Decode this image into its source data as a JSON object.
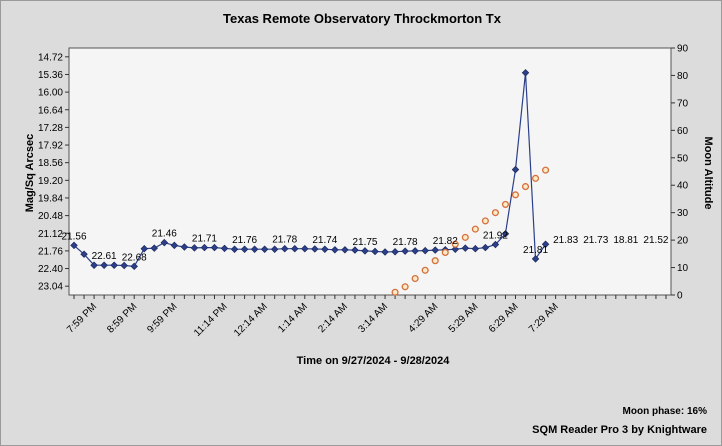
{
  "chart_data": {
    "type": "line",
    "title": "Texas Remote Observatory   Throckmorton Tx",
    "xlabel": "Time on 9/27/2024 - 9/28/2024",
    "ylabel": "Mag/Sq Arcsec",
    "y2label": "Moon Altitude",
    "y_ticks": [
      "14.72",
      "15.36",
      "16.00",
      "16.64",
      "17.28",
      "17.92",
      "18.56",
      "19.20",
      "19.84",
      "20.48",
      "21.12",
      "21.76",
      "22.40",
      "23.04"
    ],
    "y_range": [
      14.4,
      23.36
    ],
    "y_reversed": true,
    "y2_ticks": [
      "0",
      "10",
      "20",
      "30",
      "40",
      "50",
      "60",
      "70",
      "80",
      "90"
    ],
    "y2_range": [
      0,
      90
    ],
    "x_tick_labels": [
      "7:59 PM",
      "8:59 PM",
      "9:59 PM",
      "11:14 PM",
      "12:14 AM",
      "1:14 AM",
      "2:14 AM",
      "3:14 AM",
      "4:29 AM",
      "5:29 AM",
      "6:29 AM",
      "7:29 AM"
    ],
    "x_tick_positions": [
      2,
      6,
      10,
      15,
      19,
      23,
      27,
      31,
      36,
      40,
      44,
      48
    ],
    "x_count": 60,
    "series": [
      {
        "color": "#2b3f8a",
        "marker": "diamond",
        "x": [
          0,
          1,
          2,
          3,
          4,
          5,
          6,
          7,
          8,
          9,
          10,
          11,
          12,
          13,
          14,
          15,
          16,
          17,
          18,
          19,
          20,
          21,
          22,
          23,
          24,
          25,
          26,
          27,
          28,
          29,
          30,
          31,
          32,
          33,
          34,
          35,
          36,
          37,
          38,
          39,
          40,
          41,
          42,
          43,
          44,
          45,
          46,
          47
        ],
        "values": [
          21.56,
          21.88,
          22.28,
          22.28,
          22.28,
          22.29,
          22.32,
          21.68,
          21.66,
          21.46,
          21.56,
          21.62,
          21.65,
          21.64,
          21.64,
          21.67,
          21.7,
          21.7,
          21.7,
          21.7,
          21.7,
          21.68,
          21.68,
          21.68,
          21.69,
          21.7,
          21.72,
          21.72,
          21.73,
          21.76,
          21.78,
          21.8,
          21.79,
          21.77,
          21.76,
          21.75,
          21.73,
          21.72,
          21.7,
          21.66,
          21.68,
          21.64,
          21.53,
          21.14,
          18.81,
          15.3,
          22.05,
          21.52
        ]
      },
      {
        "color": "#d4703c",
        "marker": "circle",
        "x": [
          32,
          33,
          34,
          35,
          36,
          37,
          38,
          39,
          40,
          41,
          42,
          43,
          44,
          45,
          46,
          47
        ],
        "values": [
          1,
          3,
          6,
          9,
          12.5,
          15.5,
          18.5,
          21,
          24,
          27,
          30,
          33,
          36.5,
          39.5,
          42.5,
          45.5
        ]
      }
    ],
    "data_labels": [
      {
        "series": 0,
        "index": 0,
        "text": "21.56"
      },
      {
        "series": 0,
        "index": 3,
        "text": "22.61"
      },
      {
        "series": 0,
        "index": 6,
        "text": "22.68"
      },
      {
        "series": 0,
        "index": 9,
        "text": "21.46"
      },
      {
        "series": 0,
        "index": 13,
        "text": "21.71"
      },
      {
        "series": 0,
        "index": 17,
        "text": "21.76"
      },
      {
        "series": 0,
        "index": 21,
        "text": "21.78"
      },
      {
        "series": 0,
        "index": 25,
        "text": "21.74"
      },
      {
        "series": 0,
        "index": 29,
        "text": "21.75"
      },
      {
        "series": 0,
        "index": 33,
        "text": "21.78"
      },
      {
        "series": 0,
        "index": 37,
        "text": "21.82"
      },
      {
        "series": 0,
        "index": 42,
        "text": "21.92"
      },
      {
        "series": 0,
        "index": 46,
        "text": "21.81"
      },
      {
        "series": 0,
        "index": 49,
        "text": "21.83"
      },
      {
        "series": 0,
        "index": 52,
        "text": "21.73"
      },
      {
        "series": 0,
        "index": 55,
        "text": "18.81"
      },
      {
        "series": 0,
        "index": 58,
        "text": "21.52"
      }
    ],
    "grid": false,
    "moon_phase_text": "Moon phase: 16%",
    "footer": "SQM Reader Pro 3 by Knightware"
  },
  "colors": {
    "background": "#dcdcdc",
    "plot_background": "#f5f5f5",
    "sqm_line": "#2b3f8a",
    "moon_marker": "#d4703c"
  }
}
